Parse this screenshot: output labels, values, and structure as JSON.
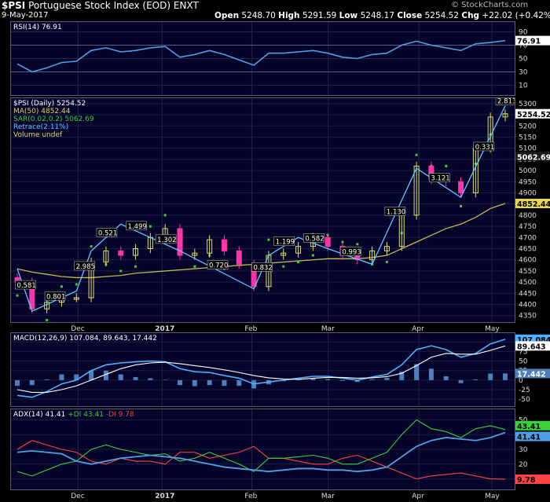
{
  "header": {
    "symbol": "$PSI",
    "name": "Portuguese Stock Index (EOD)",
    "exchange": "ENXT",
    "date": "9-May-2017",
    "brand": "© StockCharts.com",
    "open_label": "Open",
    "open": "5248.70",
    "high_label": "High",
    "high": "5291.59",
    "low_label": "Low",
    "low": "5248.17",
    "close_label": "Close",
    "close": "5254.52",
    "chg_label": "Chg",
    "chg": "+22.02 (+0.42%)"
  },
  "rsi": {
    "legend": "RSI(14) 76.91",
    "value_badge": "76.91",
    "ticks": [
      90,
      70,
      50,
      30,
      10
    ],
    "color": "#4f9fe8"
  },
  "price": {
    "legend": [
      "$PSI (Daily) 5254.52",
      "MA(50) 4852.44",
      "SAR(0.02,0.2) 5062.69",
      "Retrace(2.11%)",
      "Volume undef"
    ],
    "legend_colors": [
      "#ffffff",
      "#e8d84a",
      "#3ccf3c",
      "#5fc8ff",
      "#e8d84a"
    ],
    "badges": [
      "5254.52",
      "5062.69",
      "4852.44"
    ],
    "ticks": [
      5300,
      5250,
      5200,
      5150,
      5100,
      5050,
      5000,
      4950,
      4900,
      4850,
      4800,
      4750,
      4700,
      4650,
      4600,
      4550,
      4500,
      4450,
      4400,
      4350
    ],
    "zigzag_labels": [
      "0.581",
      "0.801",
      "2.985",
      "0.521",
      "1.499",
      "1.302",
      "0.720",
      "0.832",
      "1.199",
      "0.582",
      "0.993",
      "1.130",
      "3.121",
      "0.331",
      "2.813"
    ],
    "up_color": "#e0e060",
    "down_color": "#ff33aa",
    "ma_color": "#c8b850",
    "sar_color": "#3ccf3c",
    "retrace_color": "#5fc8ff"
  },
  "macd": {
    "legend": "MACD(12,26,9) 107.084, 89.643, 17.442",
    "badges": [
      "107.084",
      "89.643",
      "17.442"
    ],
    "ticks": [
      100,
      75,
      50,
      25,
      0,
      -25,
      -50
    ]
  },
  "adx": {
    "legend_adx": "ADX(14) 41.41",
    "legend_pdi": "+DI 43.41",
    "legend_mdi": "-DI 9.78",
    "badges": [
      "43.41",
      "41.41",
      "9.78"
    ],
    "ticks": [
      50,
      40,
      30,
      20,
      10
    ]
  },
  "x_axis": [
    "Dec",
    "2017",
    "Feb",
    "Mar",
    "Apr",
    "May"
  ],
  "chart_data": {
    "type": "line",
    "title": "$PSI Portuguese Stock Index (EOD)",
    "x": [
      "2016-11-10",
      "2016-11-15",
      "2016-11-20",
      "2016-11-25",
      "2016-12-01",
      "2016-12-06",
      "2016-12-12",
      "2016-12-16",
      "2016-12-22",
      "2016-12-28",
      "2017-01-03",
      "2017-01-09",
      "2017-01-13",
      "2017-01-19",
      "2017-01-25",
      "2017-01-31",
      "2017-02-06",
      "2017-02-10",
      "2017-02-16",
      "2017-02-22",
      "2017-02-28",
      "2017-03-06",
      "2017-03-10",
      "2017-03-16",
      "2017-03-22",
      "2017-03-28",
      "2017-04-03",
      "2017-04-07",
      "2017-04-13",
      "2017-04-19",
      "2017-04-25",
      "2017-05-01",
      "2017-05-05",
      "2017-05-09"
    ],
    "series": [
      {
        "name": "$PSI",
        "values": [
          4500,
          4380,
          4410,
          4430,
          4430,
          4590,
          4640,
          4620,
          4650,
          4700,
          4740,
          4620,
          4630,
          4690,
          4640,
          4580,
          4480,
          4620,
          4630,
          4660,
          4700,
          4660,
          4620,
          4600,
          4640,
          4660,
          4800,
          5020,
          4960,
          4950,
          4900,
          5100,
          5240,
          5254.52
        ]
      },
      {
        "name": "MA(50)",
        "values": [
          4560,
          4545,
          4535,
          4525,
          4520,
          4520,
          4525,
          4530,
          4540,
          4545,
          4550,
          4555,
          4560,
          4565,
          4570,
          4575,
          4580,
          4585,
          4590,
          4595,
          4600,
          4605,
          4605,
          4605,
          4610,
          4620,
          4650,
          4680,
          4710,
          4740,
          4760,
          4790,
          4830,
          4852.44
        ]
      },
      {
        "name": "RSI(14)",
        "values": [
          42,
          30,
          36,
          44,
          46,
          62,
          66,
          60,
          62,
          66,
          68,
          52,
          56,
          62,
          56,
          48,
          40,
          58,
          58,
          60,
          62,
          58,
          52,
          50,
          56,
          58,
          70,
          76,
          70,
          66,
          62,
          72,
          74,
          76.91
        ]
      },
      {
        "name": "MACD",
        "values": [
          -40,
          -45,
          -30,
          -10,
          0,
          25,
          40,
          45,
          48,
          50,
          48,
          30,
          22,
          20,
          12,
          5,
          -10,
          -5,
          0,
          5,
          10,
          10,
          5,
          0,
          8,
          15,
          40,
          80,
          90,
          80,
          60,
          70,
          95,
          107.084
        ]
      },
      {
        "name": "Signal",
        "values": [
          -25,
          -32,
          -32,
          -25,
          -15,
          0,
          15,
          30,
          40,
          45,
          47,
          43,
          38,
          33,
          27,
          20,
          12,
          6,
          3,
          2,
          5,
          7,
          7,
          5,
          6,
          9,
          18,
          38,
          60,
          70,
          68,
          68,
          78,
          89.643
        ]
      },
      {
        "name": "ADX",
        "values": [
          28,
          29,
          28,
          27,
          22,
          20,
          22,
          24,
          25,
          26,
          25,
          24,
          22,
          20,
          18,
          17,
          16,
          15,
          16,
          17,
          17,
          16,
          16,
          15,
          16,
          18,
          25,
          32,
          36,
          38,
          37,
          36,
          38,
          41.41
        ]
      },
      {
        "name": "+DI",
        "values": [
          15,
          12,
          16,
          20,
          22,
          30,
          33,
          30,
          28,
          26,
          27,
          22,
          24,
          28,
          24,
          20,
          15,
          24,
          24,
          25,
          26,
          24,
          20,
          20,
          24,
          28,
          40,
          50,
          44,
          42,
          38,
          44,
          46,
          43.41
        ]
      },
      {
        "name": "-DI",
        "values": [
          30,
          36,
          33,
          30,
          28,
          22,
          20,
          24,
          22,
          22,
          20,
          28,
          28,
          24,
          26,
          28,
          32,
          24,
          24,
          22,
          20,
          20,
          24,
          26,
          22,
          18,
          14,
          10,
          12,
          13,
          14,
          12,
          10,
          9.78
        ]
      }
    ],
    "x_tick_labels": [
      "Dec",
      "2017",
      "Feb",
      "Mar",
      "Apr",
      "May"
    ]
  }
}
